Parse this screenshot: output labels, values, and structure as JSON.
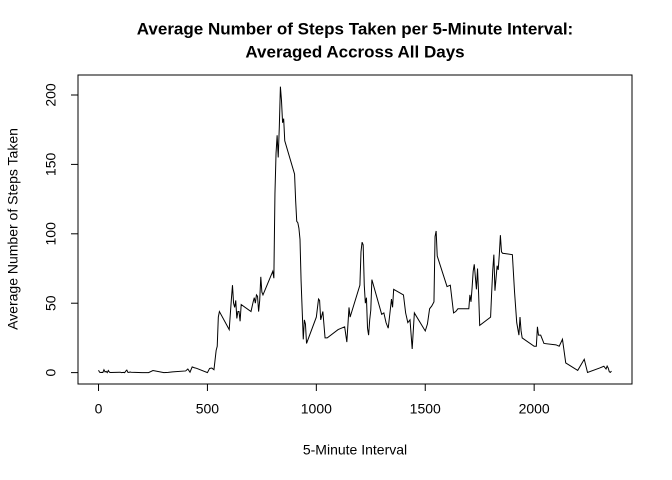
{
  "chart_data": {
    "type": "line",
    "title": [
      "Average Number of Steps Taken per 5-Minute Interval:",
      "Averaged Accross All Days"
    ],
    "x_label": "5-Minute Interval",
    "y_label": "Average Number of Steps Taken",
    "x": [
      0,
      5,
      10,
      15,
      20,
      25,
      30,
      35,
      40,
      45,
      50,
      55,
      100,
      105,
      110,
      115,
      120,
      125,
      130,
      135,
      140,
      145,
      150,
      200,
      230,
      250,
      300,
      320,
      340,
      400,
      410,
      420,
      430,
      440,
      450,
      500,
      510,
      520,
      530,
      540,
      545,
      550,
      555,
      600,
      610,
      615,
      620,
      625,
      630,
      635,
      640,
      645,
      650,
      655,
      700,
      710,
      715,
      720,
      725,
      730,
      735,
      740,
      745,
      750,
      755,
      800,
      805,
      810,
      815,
      820,
      825,
      830,
      835,
      840,
      845,
      850,
      855,
      900,
      905,
      910,
      915,
      920,
      925,
      930,
      935,
      940,
      945,
      950,
      955,
      1000,
      1010,
      1015,
      1020,
      1030,
      1040,
      1050,
      1100,
      1130,
      1140,
      1150,
      1155,
      1200,
      1205,
      1210,
      1215,
      1220,
      1225,
      1230,
      1235,
      1240,
      1245,
      1250,
      1255,
      1300,
      1310,
      1320,
      1330,
      1340,
      1345,
      1350,
      1355,
      1400,
      1410,
      1420,
      1430,
      1440,
      1450,
      1500,
      1510,
      1520,
      1530,
      1540,
      1545,
      1550,
      1555,
      1600,
      1615,
      1630,
      1640,
      1650,
      1700,
      1705,
      1710,
      1715,
      1720,
      1725,
      1730,
      1735,
      1740,
      1745,
      1750,
      1800,
      1805,
      1810,
      1815,
      1820,
      1825,
      1830,
      1835,
      1840,
      1845,
      1850,
      1855,
      1900,
      1910,
      1920,
      1930,
      1935,
      1940,
      1945,
      2000,
      2005,
      2010,
      2015,
      2020,
      2030,
      2045,
      2100,
      2115,
      2130,
      2145,
      2200,
      2230,
      2245,
      2300,
      2320,
      2330,
      2335,
      2340,
      2345,
      2350,
      2355
    ],
    "series": [
      {
        "name": "steps",
        "color": "#000000",
        "values": [
          1.7,
          0.3,
          0.1,
          0.2,
          0.1,
          2.1,
          0.5,
          0.9,
          0,
          1.5,
          0.3,
          0.1,
          0.3,
          0,
          0.1,
          0.2,
          0,
          1.1,
          1.8,
          0.2,
          0.2,
          0.4,
          0.3,
          0,
          0,
          1.5,
          0,
          0.2,
          0.5,
          1.2,
          2.6,
          0.3,
          4.1,
          3.5,
          3.1,
          0,
          3,
          3.3,
          2.1,
          16,
          19,
          40,
          44,
          31,
          53,
          63,
          50,
          47,
          52,
          39,
          44,
          44,
          37,
          49,
          44,
          51,
          54,
          50,
          56,
          55,
          44,
          52,
          69,
          58,
          56,
          73,
          68,
          129,
          158,
          171,
          155,
          177,
          206,
          196,
          180,
          183,
          167,
          143,
          124,
          109,
          108,
          104,
          96,
          66,
          45,
          24,
          38,
          35,
          21,
          40,
          53,
          52,
          38,
          44,
          25,
          25,
          31,
          33,
          22,
          47,
          40,
          63,
          87,
          94,
          92,
          63,
          50,
          54,
          32,
          27,
          38,
          45,
          67,
          42,
          43,
          36,
          32,
          46,
          53,
          47,
          60,
          56,
          43,
          36,
          38,
          17,
          43,
          30,
          35,
          46,
          48,
          51,
          98,
          102,
          84,
          62,
          63,
          43,
          44,
          46,
          46,
          56,
          51,
          61,
          73,
          78,
          69,
          60,
          75,
          57,
          34,
          40,
          58,
          74,
          85,
          59,
          68,
          77,
          74,
          85,
          99,
          87,
          86,
          85,
          58,
          36,
          27,
          40,
          30,
          25,
          19,
          19,
          19,
          33,
          27,
          27,
          21,
          20,
          19,
          24,
          7,
          1.6,
          9.6,
          0.1,
          3.3,
          4.6,
          2.6,
          4.7,
          3.3,
          0.6,
          0.2,
          1.1
        ]
      }
    ],
    "xlim": [
      -94.2,
      2449.2
    ],
    "ylim": [
      -8.2,
      214.4
    ],
    "xticks": [
      0,
      500,
      1000,
      1500,
      2000
    ],
    "yticks": [
      0,
      50,
      100,
      150,
      200
    ]
  }
}
